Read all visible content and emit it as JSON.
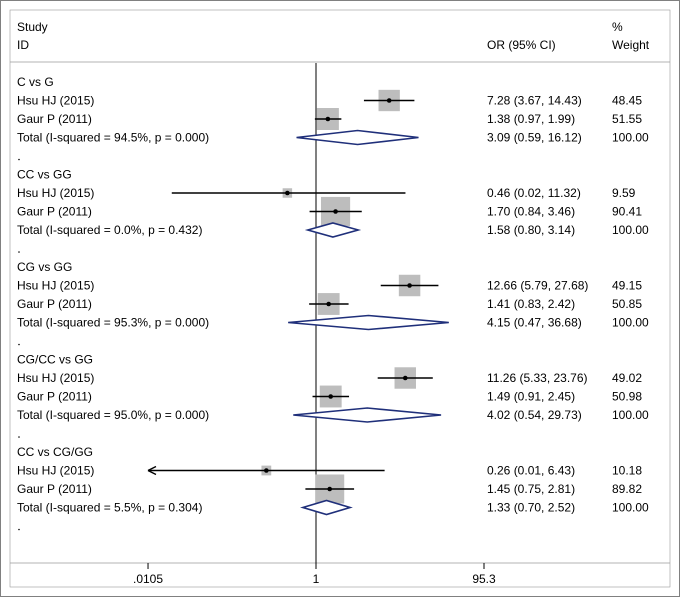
{
  "chart_data": {
    "type": "forest",
    "header": {
      "study_line1": "Study",
      "study_line2": "ID",
      "or_label": "OR (95% CI)",
      "weight_line1": "%",
      "weight_line2": "Weight"
    },
    "x_axis": {
      "scale": "log",
      "ticks": [
        {
          "value": 0.0105,
          "label": ".0105"
        },
        {
          "value": 1,
          "label": "1"
        },
        {
          "value": 95.3,
          "label": "95.3"
        }
      ]
    },
    "groups": [
      {
        "name": "C vs G",
        "studies": [
          {
            "label": "Hsu HJ (2015)",
            "or": 7.28,
            "lo": 3.67,
            "hi": 14.43,
            "ci_text": "7.28 (3.67, 14.43)",
            "weight": "48.45"
          },
          {
            "label": "Gaur P (2011)",
            "or": 1.38,
            "lo": 0.97,
            "hi": 1.99,
            "ci_text": "1.38 (0.97, 1.99)",
            "weight": "51.55"
          }
        ],
        "total": {
          "label": "Total  (I-squared = 94.5%, p = 0.000)",
          "or": 3.09,
          "lo": 0.59,
          "hi": 16.12,
          "ci_text": "3.09 (0.59, 16.12)",
          "weight": "100.00"
        }
      },
      {
        "name": "CC vs GG",
        "studies": [
          {
            "label": "Hsu HJ (2015)",
            "or": 0.46,
            "lo": 0.02,
            "hi": 11.32,
            "ci_text": "0.46 (0.02, 11.32)",
            "weight": "9.59"
          },
          {
            "label": "Gaur P (2011)",
            "or": 1.7,
            "lo": 0.84,
            "hi": 3.46,
            "ci_text": "1.70 (0.84, 3.46)",
            "weight": "90.41"
          }
        ],
        "total": {
          "label": "Total  (I-squared = 0.0%, p = 0.432)",
          "or": 1.58,
          "lo": 0.8,
          "hi": 3.14,
          "ci_text": "1.58 (0.80, 3.14)",
          "weight": "100.00"
        }
      },
      {
        "name": "CG vs GG",
        "studies": [
          {
            "label": "Hsu HJ (2015)",
            "or": 12.66,
            "lo": 5.79,
            "hi": 27.68,
            "ci_text": "12.66 (5.79, 27.68)",
            "weight": "49.15"
          },
          {
            "label": "Gaur P (2011)",
            "or": 1.41,
            "lo": 0.83,
            "hi": 2.42,
            "ci_text": "1.41 (0.83, 2.42)",
            "weight": "50.85"
          }
        ],
        "total": {
          "label": "Total  (I-squared = 95.3%, p = 0.000)",
          "or": 4.15,
          "lo": 0.47,
          "hi": 36.68,
          "ci_text": "4.15 (0.47, 36.68)",
          "weight": "100.00"
        }
      },
      {
        "name": "CG/CC vs GG",
        "studies": [
          {
            "label": "Hsu HJ (2015)",
            "or": 11.26,
            "lo": 5.33,
            "hi": 23.76,
            "ci_text": "11.26 (5.33, 23.76)",
            "weight": "49.02"
          },
          {
            "label": "Gaur P (2011)",
            "or": 1.49,
            "lo": 0.91,
            "hi": 2.45,
            "ci_text": "1.49 (0.91, 2.45)",
            "weight": "50.98"
          }
        ],
        "total": {
          "label": "Total  (I-squared = 95.0%, p = 0.000)",
          "or": 4.02,
          "lo": 0.54,
          "hi": 29.73,
          "ci_text": "4.02 (0.54, 29.73)",
          "weight": "100.00"
        }
      },
      {
        "name": "CC vs CG/GG",
        "studies": [
          {
            "label": "Hsu HJ (2015)",
            "or": 0.26,
            "lo": 0.01,
            "hi": 6.43,
            "ci_text": "0.26 (0.01, 6.43)",
            "weight": "10.18",
            "arrow_left": true
          },
          {
            "label": "Gaur P (2011)",
            "or": 1.45,
            "lo": 0.75,
            "hi": 2.81,
            "ci_text": "1.45 (0.75, 2.81)",
            "weight": "89.82"
          }
        ],
        "total": {
          "label": "Total  (I-squared = 5.5%, p = 0.304)",
          "or": 1.33,
          "lo": 0.7,
          "hi": 2.52,
          "ci_text": "1.33 (0.70, 2.52)",
          "weight": "100.00"
        }
      }
    ]
  },
  "colors": {
    "border": "#808080",
    "separator": "#9a9a9a",
    "box_fill": "#bdbdbd",
    "diamond_stroke": "#1f2f7a",
    "line": "#000000"
  }
}
